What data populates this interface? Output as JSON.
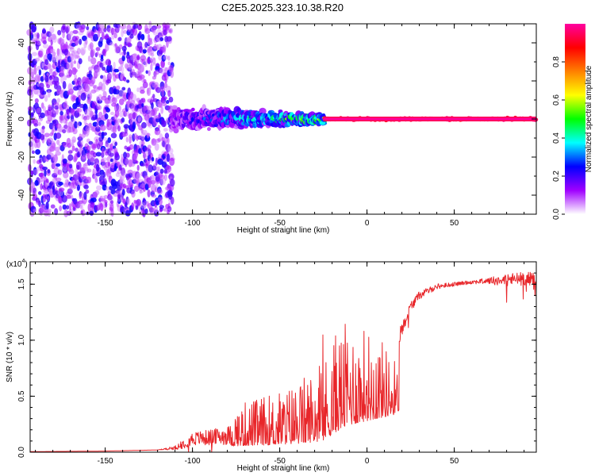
{
  "page": {
    "title": "C2E5.2025.323.10.38.R20"
  },
  "chart_data": [
    {
      "type": "heatmap",
      "name": "spectrogram",
      "title": "C2E5.2025.323.10.38.R20",
      "xlabel": "Height of straight line (km)",
      "ylabel": "Frequency (Hz)",
      "xlim": [
        -193,
        97
      ],
      "ylim": [
        -50,
        50
      ],
      "xticks": [
        -150,
        -100,
        -50,
        0,
        50
      ],
      "xtick_labels": [
        "-150",
        "-100",
        "-50",
        "0",
        "50"
      ],
      "yticks": [
        -40,
        -20,
        0,
        20,
        40
      ],
      "ytick_labels": [
        "-40",
        "-20",
        "0",
        "20",
        "40"
      ],
      "regions": [
        {
          "x_range": [
            -193,
            -112
          ],
          "freq_spread": 50,
          "amplitude": [
            0.05,
            0.25
          ],
          "description": "broadband noise"
        },
        {
          "x_range": [
            -112,
            -25
          ],
          "freq_spread": 8,
          "amplitude": [
            0.15,
            0.5
          ],
          "description": "widening signal"
        },
        {
          "x_range": [
            -25,
            97
          ],
          "freq_spread": 1.5,
          "amplitude": [
            0.85,
            1.0
          ],
          "description": "narrow carrier line at 0 Hz"
        }
      ],
      "colorbar": {
        "label": "Normalized spectral amplitude",
        "range": [
          0,
          1
        ],
        "ticks": [
          0.0,
          0.2,
          0.4,
          0.6,
          0.8
        ],
        "tick_labels": [
          "0.0",
          "0.2",
          "0.4",
          "0.6",
          "0.8"
        ],
        "colors": [
          "#ffffff",
          "#a000ff",
          "#0000ff",
          "#00ffff",
          "#00ff00",
          "#ffff00",
          "#ff8000",
          "#ff0000",
          "#ff00a0"
        ]
      }
    },
    {
      "type": "line",
      "name": "snr",
      "xlabel": "Height of straight line (km)",
      "ylabel": "SNR (10 * v/v)",
      "yscale_label": "(x10",
      "yscale_exp": "4",
      "yscale_close": ")",
      "xlim": [
        -193,
        97
      ],
      "ylim": [
        0,
        1.7
      ],
      "xticks": [
        -150,
        -100,
        -50,
        0,
        50
      ],
      "xtick_labels": [
        "-150",
        "-100",
        "-50",
        "0",
        "50"
      ],
      "yticks": [
        0.0,
        0.5,
        1.0,
        1.5
      ],
      "ytick_labels": [
        "0.0",
        "0.5",
        "1.0",
        "1.5"
      ],
      "color": "#e8262a",
      "series": [
        {
          "name": "SNR",
          "x": [
            -193,
            -150,
            -120,
            -110,
            -105,
            -100,
            -90,
            -80,
            -70,
            -60,
            -50,
            -40,
            -35,
            -30,
            -25,
            -20,
            -15,
            -10,
            -5,
            0,
            5,
            10,
            15,
            20,
            25,
            30,
            40,
            50,
            60,
            70,
            80,
            90,
            97
          ],
          "y": [
            0.005,
            0.01,
            0.02,
            0.04,
            0.08,
            0.12,
            0.13,
            0.15,
            0.17,
            0.18,
            0.2,
            0.22,
            0.24,
            0.26,
            0.3,
            0.45,
            0.6,
            0.7,
            0.75,
            0.8,
            0.85,
            0.9,
            0.95,
            1.1,
            1.3,
            1.4,
            1.48,
            1.5,
            1.52,
            1.53,
            1.54,
            1.55,
            1.55
          ],
          "noise": [
            0.0,
            0.0,
            0.0,
            0.03,
            0.08,
            0.1,
            0.12,
            0.14,
            0.18,
            0.2,
            0.22,
            0.26,
            0.28,
            0.3,
            0.32,
            0.4,
            0.42,
            0.42,
            0.4,
            0.38,
            0.38,
            0.3,
            0.25,
            0.1,
            0.08,
            0.06,
            0.04,
            0.03,
            0.03,
            0.05,
            0.1,
            0.1,
            0.1
          ]
        }
      ]
    }
  ]
}
